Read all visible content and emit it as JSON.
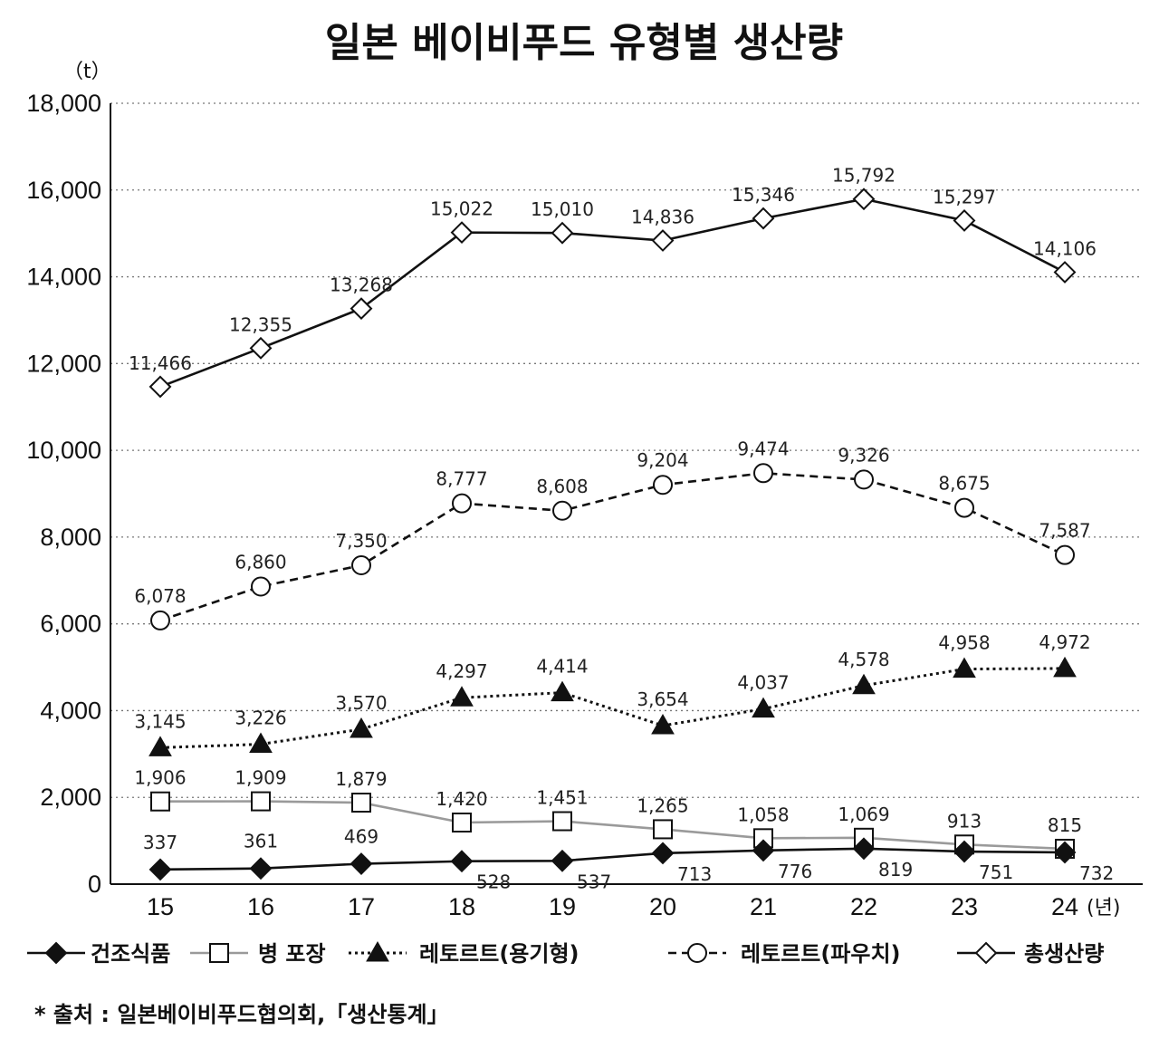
{
  "chart_data": {
    "type": "line",
    "title": "일본 베이비푸드 유형별 생산량",
    "ylabel": "（t）",
    "xlabel": "(년)",
    "ylim": [
      0,
      18000
    ],
    "yticks": [
      0,
      2000,
      4000,
      6000,
      8000,
      10000,
      12000,
      14000,
      16000,
      18000
    ],
    "ytick_labels": [
      "0",
      "2,000",
      "4,000",
      "6,000",
      "8,000",
      "10,000",
      "12,000",
      "14,000",
      "16,000",
      "18,000"
    ],
    "categories": [
      "15",
      "16",
      "17",
      "18",
      "19",
      "20",
      "21",
      "22",
      "23",
      "24"
    ],
    "grid": true,
    "legend_position": "bottom",
    "series": [
      {
        "name": "총생산량",
        "values": [
          11466,
          12355,
          13268,
          15022,
          15010,
          14836,
          15346,
          15792,
          15297,
          14106
        ],
        "labels": [
          "11,466",
          "12,355",
          "13,268",
          "15,022",
          "15,010",
          "14,836",
          "15,346",
          "15,792",
          "15,297",
          "14,106"
        ],
        "marker": "diamond-open",
        "line": "solid",
        "color": "#111111"
      },
      {
        "name": "레토르트(파우치)",
        "values": [
          6078,
          6860,
          7350,
          8777,
          8608,
          9204,
          9474,
          9326,
          8675,
          7587
        ],
        "labels": [
          "6,078",
          "6,860",
          "7,350",
          "8,777",
          "8,608",
          "9,204",
          "9,474",
          "9,326",
          "8,675",
          "7,587"
        ],
        "marker": "circle-open",
        "line": "dashed",
        "color": "#111111"
      },
      {
        "name": "레토르트(용기형)",
        "values": [
          3145,
          3226,
          3570,
          4297,
          4414,
          3654,
          4037,
          4578,
          4958,
          4972
        ],
        "labels": [
          "3,145",
          "3,226",
          "3,570",
          "4,297",
          "4,414",
          "3,654",
          "4,037",
          "4,578",
          "4,958",
          "4,972"
        ],
        "marker": "triangle-filled",
        "line": "dotted",
        "color": "#111111"
      },
      {
        "name": "병 포장",
        "values": [
          1906,
          1909,
          1879,
          1420,
          1451,
          1265,
          1058,
          1069,
          913,
          815
        ],
        "labels": [
          "1,906",
          "1,909",
          "1,879",
          "1,420",
          "1,451",
          "1,265",
          "1,058",
          "1,069",
          "913",
          "815"
        ],
        "marker": "square-open",
        "line": "solid",
        "color": "#9a9a9a"
      },
      {
        "name": "건조식품",
        "values": [
          337,
          361,
          469,
          528,
          537,
          713,
          776,
          819,
          751,
          732
        ],
        "labels": [
          "337",
          "361",
          "469",
          "528",
          "537",
          "713",
          "776",
          "819",
          "751",
          "732"
        ],
        "marker": "diamond-filled",
        "line": "solid",
        "color": "#111111"
      }
    ],
    "legend": [
      "건조식품",
      "병 포장",
      "레토르트(용기형)",
      "레토르트(파우치)",
      "총생산량"
    ],
    "source": "* 출처 : 일본베이비푸드협의회,「생산통계」"
  }
}
